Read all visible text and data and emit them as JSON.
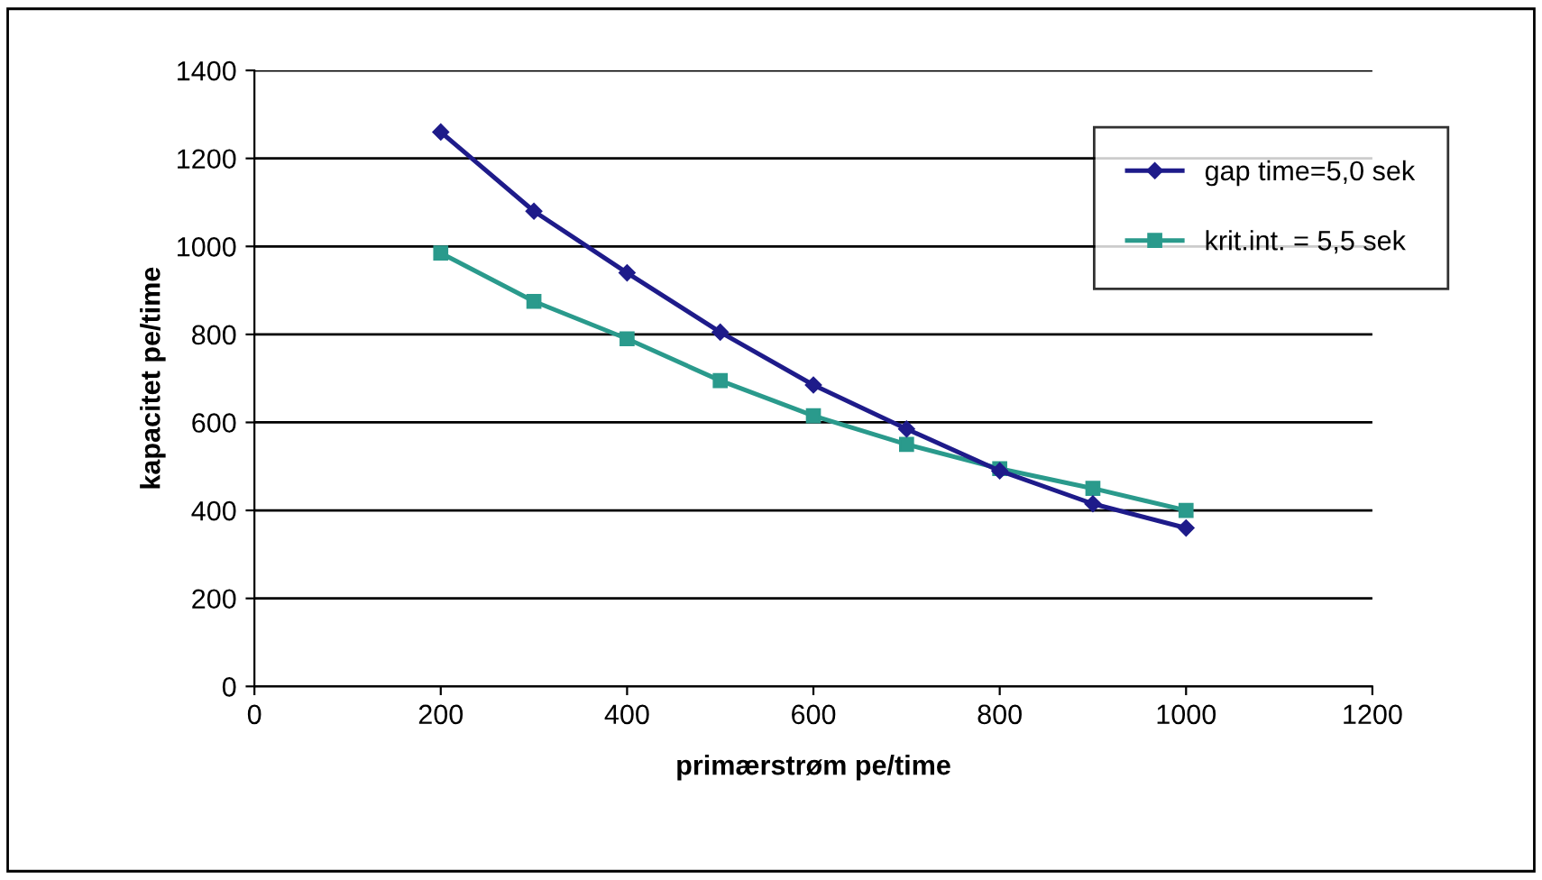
{
  "chart_data": {
    "type": "line",
    "xlabel": "primærstrøm pe/time",
    "ylabel": "kapacitet pe/time",
    "x": [
      200,
      300,
      400,
      500,
      600,
      700,
      800,
      900,
      1000
    ],
    "series": [
      {
        "name": "gap time=5,0 sek",
        "color": "#1e1b8a",
        "marker": "diamond",
        "values": [
          1260,
          1080,
          940,
          805,
          685,
          585,
          490,
          415,
          360
        ]
      },
      {
        "name": "krit.int. = 5,5 sek",
        "color": "#2a9a8c",
        "marker": "square",
        "values": [
          985,
          875,
          790,
          695,
          615,
          550,
          495,
          450,
          400
        ]
      }
    ],
    "xlim": [
      0,
      1200
    ],
    "xticks": [
      0,
      200,
      400,
      600,
      800,
      1000,
      1200
    ],
    "ylim": [
      0,
      1400
    ],
    "yticks": [
      0,
      200,
      400,
      600,
      800,
      1000,
      1200,
      1400
    ],
    "grid": "y",
    "legend": "top right",
    "line_style": "solid"
  }
}
